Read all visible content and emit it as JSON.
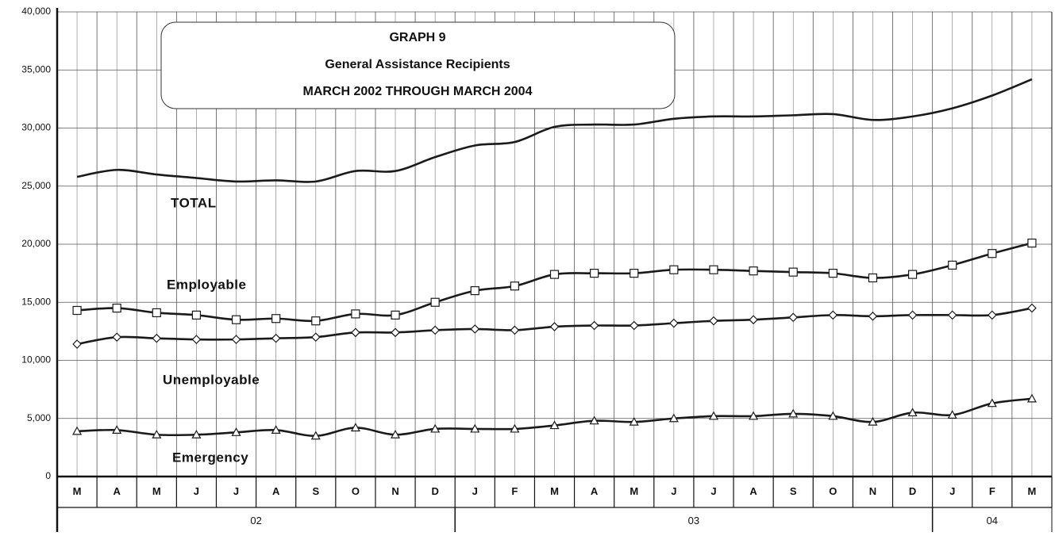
{
  "chart_data": {
    "type": "line",
    "title": "GRAPH 9",
    "subtitle": "General Assistance Recipients",
    "period": "MARCH 2002 THROUGH MARCH 2004",
    "categories": [
      "M",
      "A",
      "M",
      "J",
      "J",
      "A",
      "S",
      "O",
      "N",
      "D",
      "J",
      "F",
      "M",
      "A",
      "M",
      "J",
      "J",
      "A",
      "S",
      "O",
      "N",
      "D",
      "J",
      "F",
      "M"
    ],
    "year_groups": [
      {
        "label": "02",
        "span": 10
      },
      {
        "label": "03",
        "span": 12
      },
      {
        "label": "04",
        "span": 3
      }
    ],
    "ylim": [
      0,
      40000
    ],
    "yticks": [
      0,
      {
        "value": 5000,
        "label": "5,000"
      },
      {
        "value": 10000,
        "label": "10,000"
      },
      {
        "value": 15000,
        "label": "15,000"
      },
      {
        "value": 20000,
        "label": "20,000"
      },
      {
        "value": 25000,
        "label": "25,000"
      },
      {
        "value": 30000,
        "label": "30,000"
      },
      {
        "value": 35000,
        "label": "35,000"
      },
      {
        "value": 40000,
        "label": "40,000"
      }
    ],
    "grid": true,
    "series": [
      {
        "name": "TOTAL",
        "color": "#1a1a1a",
        "marker": "none",
        "values": [
          25800,
          26400,
          26000,
          25700,
          25400,
          25500,
          25400,
          26300,
          26300,
          27500,
          28500,
          28800,
          30100,
          30300,
          30300,
          30800,
          31000,
          31000,
          31100,
          31200,
          30700,
          31000,
          31700,
          32800,
          34200
        ]
      },
      {
        "name": "Employable",
        "color": "#1a1a1a",
        "marker": "square",
        "values": [
          14300,
          14500,
          14100,
          13900,
          13500,
          13600,
          13400,
          14000,
          13900,
          15000,
          16000,
          16400,
          17400,
          17500,
          17500,
          17800,
          17800,
          17700,
          17600,
          17500,
          17100,
          17400,
          18200,
          19200,
          20100
        ]
      },
      {
        "name": "Unemployable",
        "color": "#1a1a1a",
        "marker": "diamond",
        "values": [
          11400,
          12000,
          11900,
          11800,
          11800,
          11900,
          12000,
          12400,
          12400,
          12600,
          12700,
          12600,
          12900,
          13000,
          13000,
          13200,
          13400,
          13500,
          13700,
          13900,
          13800,
          13900,
          13900,
          13900,
          14500
        ]
      },
      {
        "name": "Emergency",
        "color": "#1a1a1a",
        "marker": "triangle",
        "values": [
          3900,
          4000,
          3600,
          3600,
          3800,
          4000,
          3500,
          4200,
          3600,
          4100,
          4100,
          4100,
          4400,
          4800,
          4700,
          5000,
          5200,
          5200,
          5400,
          5200,
          4700,
          5500,
          5300,
          6300,
          6700
        ]
      }
    ]
  }
}
